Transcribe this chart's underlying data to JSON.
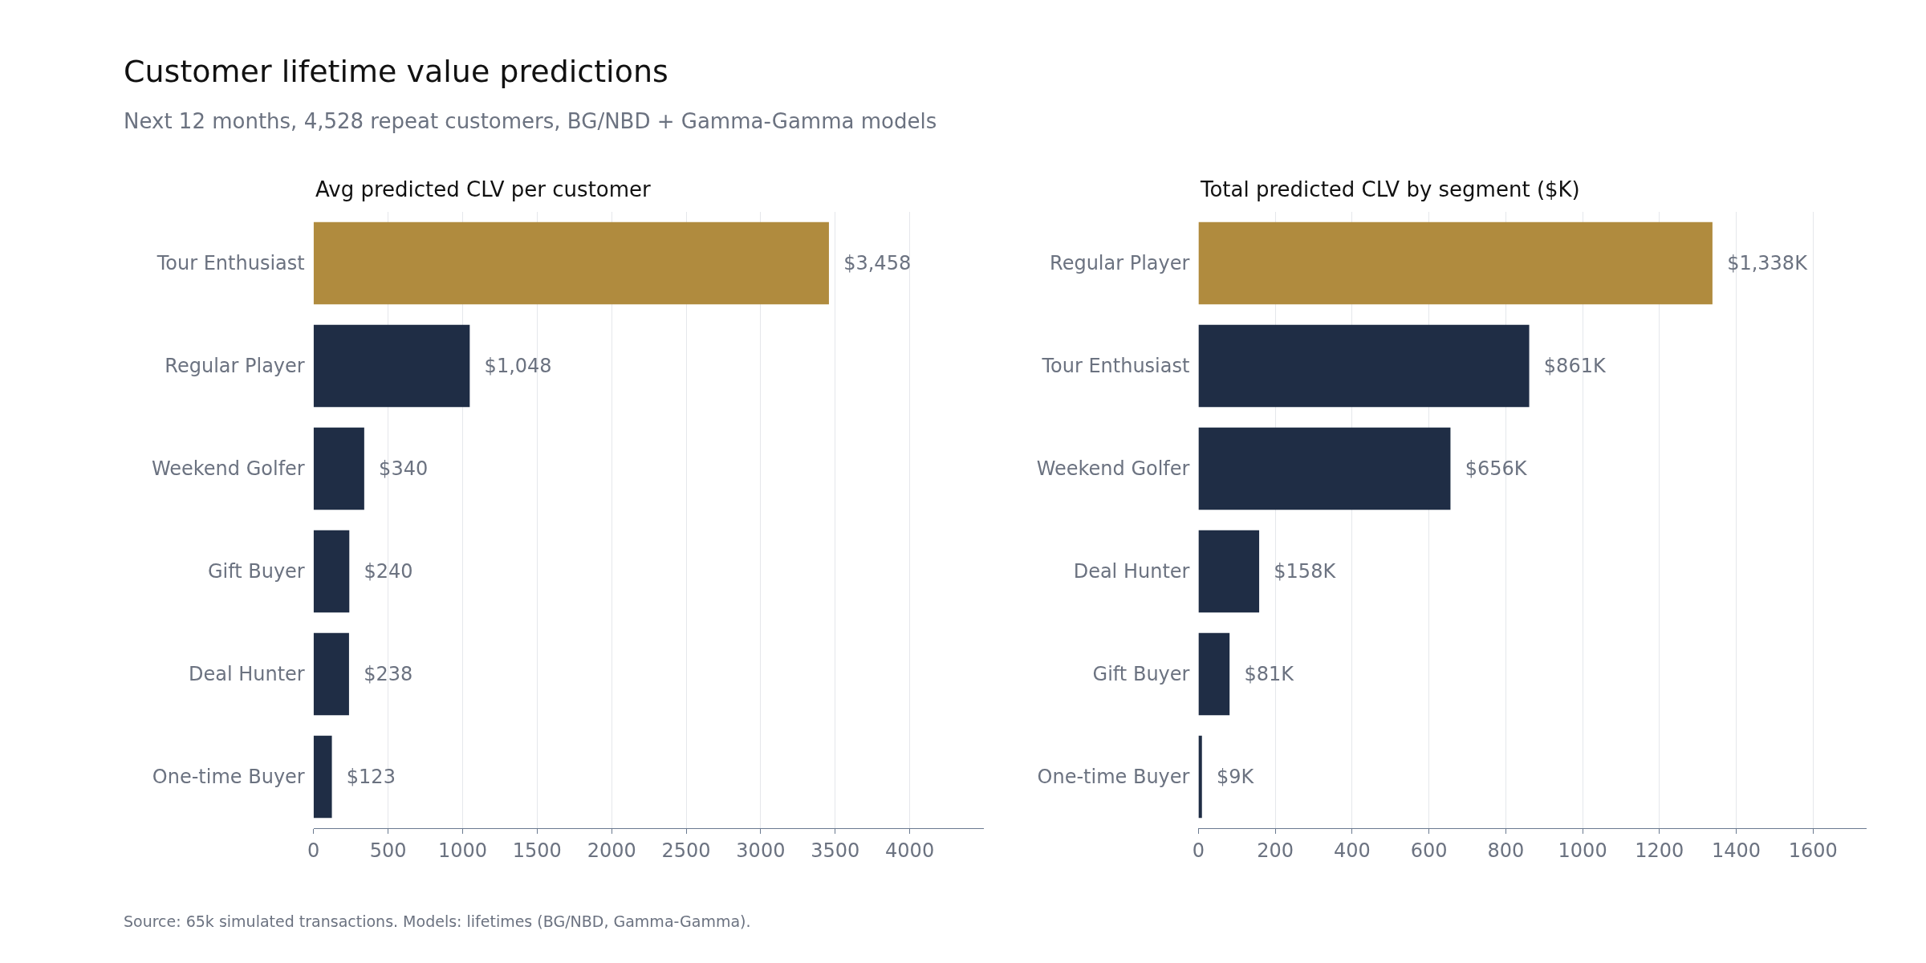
{
  "chart_data": [
    {
      "type": "bar",
      "orientation": "horizontal",
      "title": "Avg predicted CLV per customer",
      "annotations": [
        "Customer lifetime value predictions",
        "Next 12 months, 4,528 repeat customers, BG/NBD + Gamma-Gamma models",
        "Source: 65k simulated transactions. Models: lifetimes (BG/NBD, Gamma-Gamma)."
      ],
      "categories": [
        "Tour Enthusiast",
        "Regular Player",
        "Weekend Golfer",
        "Gift Buyer",
        "Deal Hunter",
        "One-time Buyer"
      ],
      "values": [
        3458,
        1048,
        340,
        240,
        238,
        123
      ],
      "colors": [
        "#b08b3e",
        "#1f2d45",
        "#1f2d45",
        "#1f2d45",
        "#1f2d45",
        "#1f2d45"
      ],
      "value_labels": [
        "$3,458",
        "$1,048",
        "$340",
        "$240",
        "$238",
        "$123"
      ],
      "xlim": [
        0,
        4495
      ],
      "xticks": [
        0,
        500,
        1000,
        1500,
        2000,
        2500,
        3000,
        3500,
        4000
      ],
      "grid": "x"
    },
    {
      "type": "bar",
      "orientation": "horizontal",
      "title": "Total predicted CLV by segment ($K)",
      "categories": [
        "Regular Player",
        "Tour Enthusiast",
        "Weekend Golfer",
        "Deal Hunter",
        "Gift Buyer",
        "One-time Buyer"
      ],
      "values": [
        1338,
        861,
        656,
        158,
        81,
        9
      ],
      "colors": [
        "#b08b3e",
        "#1f2d45",
        "#1f2d45",
        "#1f2d45",
        "#1f2d45",
        "#1f2d45"
      ],
      "value_labels": [
        "$1,338K",
        "$861K",
        "$656K",
        "$158K",
        "$81K",
        "$9K"
      ],
      "xlim": [
        0,
        1739
      ],
      "xticks": [
        0,
        200,
        400,
        600,
        800,
        1000,
        1200,
        1400,
        1600
      ],
      "grid": "x"
    }
  ]
}
